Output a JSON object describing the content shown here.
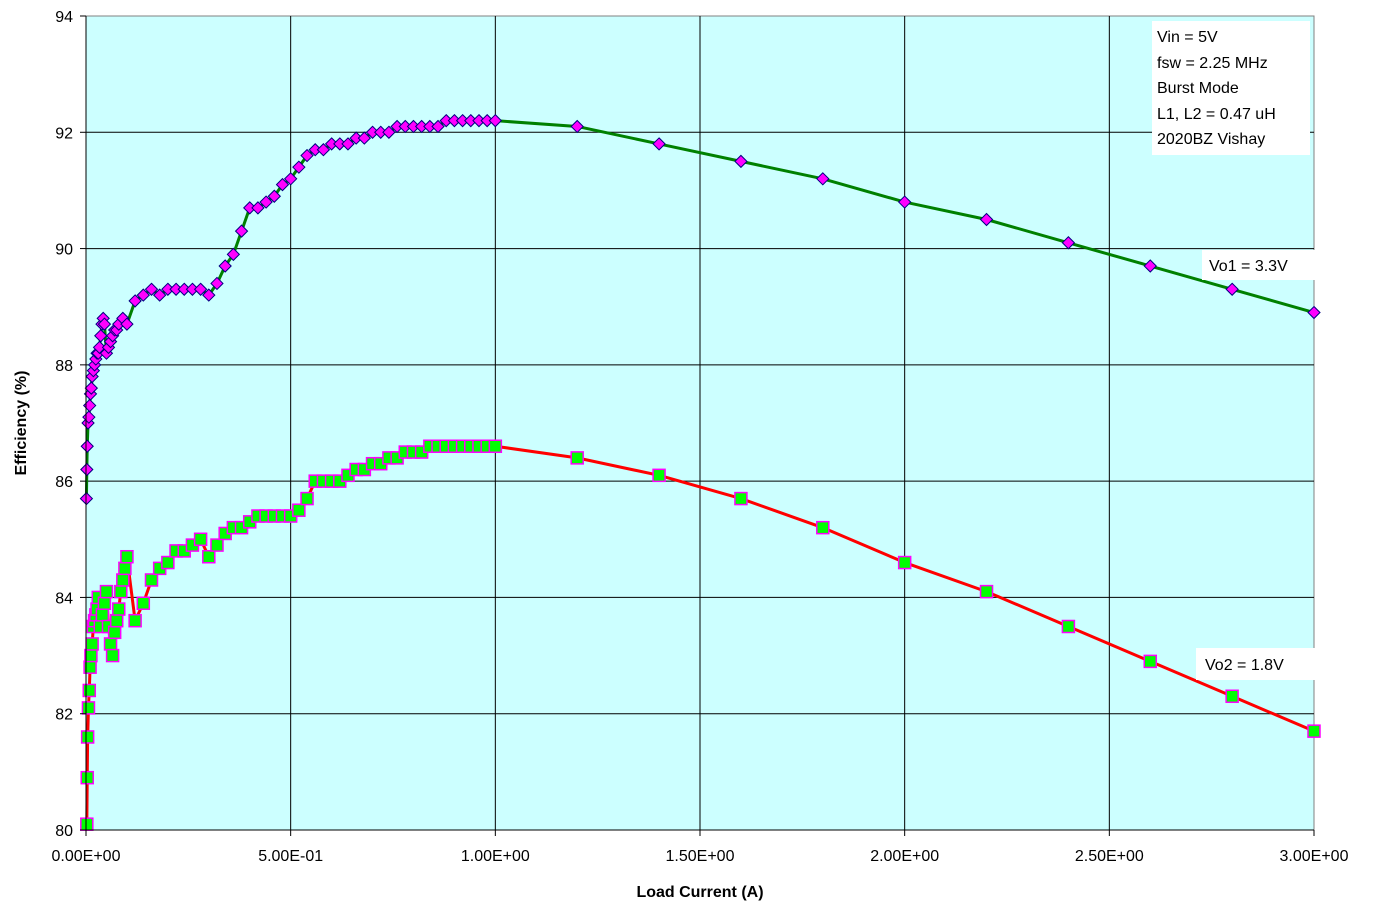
{
  "chart_data": {
    "type": "line",
    "xlabel": "Load Current (A)",
    "ylabel": "Efficiency (%)",
    "xlim": [
      0,
      3
    ],
    "ylim": [
      80,
      94
    ],
    "x_ticks": [
      {
        "value": 0,
        "label": "0.00E+00"
      },
      {
        "value": 0.5,
        "label": "5.00E-01"
      },
      {
        "value": 1.0,
        "label": "1.00E+00"
      },
      {
        "value": 1.5,
        "label": "1.50E+00"
      },
      {
        "value": 2.0,
        "label": "2.00E+00"
      },
      {
        "value": 2.5,
        "label": "2.50E+00"
      },
      {
        "value": 3.0,
        "label": "3.00E+00"
      }
    ],
    "y_ticks": [
      {
        "value": 80,
        "label": "80"
      },
      {
        "value": 82,
        "label": "82"
      },
      {
        "value": 84,
        "label": "84"
      },
      {
        "value": 86,
        "label": "86"
      },
      {
        "value": 88,
        "label": "88"
      },
      {
        "value": 90,
        "label": "90"
      },
      {
        "value": 92,
        "label": "92"
      },
      {
        "value": 94,
        "label": "94"
      }
    ],
    "grid": true,
    "plot_background": "#ccffff",
    "info_box": [
      "Vin = 5V",
      "fsw = 2.25 MHz",
      "Burst Mode",
      "L1, L2 = 0.47 uH",
      "2020BZ Vishay"
    ],
    "series": [
      {
        "name": "Vo1 = 3.3V",
        "line_color": "#008000",
        "marker": "diamond",
        "marker_fill": "#ff00ff",
        "marker_edge": "#000080",
        "points": [
          [
            0.001,
            85.7
          ],
          [
            0.002,
            86.2
          ],
          [
            0.003,
            86.6
          ],
          [
            0.005,
            87.0
          ],
          [
            0.007,
            87.1
          ],
          [
            0.009,
            87.3
          ],
          [
            0.011,
            87.5
          ],
          [
            0.013,
            87.6
          ],
          [
            0.015,
            87.8
          ],
          [
            0.018,
            87.9
          ],
          [
            0.021,
            88.0
          ],
          [
            0.024,
            88.1
          ],
          [
            0.027,
            88.2
          ],
          [
            0.03,
            88.2
          ],
          [
            0.033,
            88.3
          ],
          [
            0.036,
            88.5
          ],
          [
            0.039,
            88.7
          ],
          [
            0.042,
            88.8
          ],
          [
            0.045,
            88.7
          ],
          [
            0.05,
            88.2
          ],
          [
            0.055,
            88.3
          ],
          [
            0.06,
            88.4
          ],
          [
            0.065,
            88.5
          ],
          [
            0.07,
            88.6
          ],
          [
            0.075,
            88.6
          ],
          [
            0.08,
            88.7
          ],
          [
            0.09,
            88.8
          ],
          [
            0.1,
            88.7
          ],
          [
            0.12,
            89.1
          ],
          [
            0.14,
            89.2
          ],
          [
            0.16,
            89.3
          ],
          [
            0.18,
            89.2
          ],
          [
            0.2,
            89.3
          ],
          [
            0.22,
            89.3
          ],
          [
            0.24,
            89.3
          ],
          [
            0.26,
            89.3
          ],
          [
            0.28,
            89.3
          ],
          [
            0.3,
            89.2
          ],
          [
            0.32,
            89.4
          ],
          [
            0.34,
            89.7
          ],
          [
            0.36,
            89.9
          ],
          [
            0.38,
            90.3
          ],
          [
            0.4,
            90.7
          ],
          [
            0.42,
            90.7
          ],
          [
            0.44,
            90.8
          ],
          [
            0.46,
            90.9
          ],
          [
            0.48,
            91.1
          ],
          [
            0.5,
            91.2
          ],
          [
            0.52,
            91.4
          ],
          [
            0.54,
            91.6
          ],
          [
            0.56,
            91.7
          ],
          [
            0.58,
            91.7
          ],
          [
            0.6,
            91.8
          ],
          [
            0.62,
            91.8
          ],
          [
            0.64,
            91.8
          ],
          [
            0.66,
            91.9
          ],
          [
            0.68,
            91.9
          ],
          [
            0.7,
            92.0
          ],
          [
            0.72,
            92.0
          ],
          [
            0.74,
            92.0
          ],
          [
            0.76,
            92.1
          ],
          [
            0.78,
            92.1
          ],
          [
            0.8,
            92.1
          ],
          [
            0.82,
            92.1
          ],
          [
            0.84,
            92.1
          ],
          [
            0.86,
            92.1
          ],
          [
            0.88,
            92.2
          ],
          [
            0.9,
            92.2
          ],
          [
            0.92,
            92.2
          ],
          [
            0.94,
            92.2
          ],
          [
            0.96,
            92.2
          ],
          [
            0.98,
            92.2
          ],
          [
            1.0,
            92.2
          ],
          [
            1.2,
            92.1
          ],
          [
            1.4,
            91.8
          ],
          [
            1.6,
            91.5
          ],
          [
            1.8,
            91.2
          ],
          [
            2.0,
            90.8
          ],
          [
            2.2,
            90.5
          ],
          [
            2.4,
            90.1
          ],
          [
            2.6,
            89.7
          ],
          [
            2.8,
            89.3
          ],
          [
            3.0,
            88.9
          ]
        ]
      },
      {
        "name": "Vo2 = 1.8V",
        "line_color": "#ff0000",
        "marker": "square",
        "marker_fill": "#00ff00",
        "marker_edge": "#ff00ff",
        "points": [
          [
            0.002,
            80.1
          ],
          [
            0.003,
            80.9
          ],
          [
            0.004,
            81.6
          ],
          [
            0.006,
            82.1
          ],
          [
            0.008,
            82.4
          ],
          [
            0.01,
            82.8
          ],
          [
            0.012,
            83.0
          ],
          [
            0.015,
            83.2
          ],
          [
            0.018,
            83.5
          ],
          [
            0.021,
            83.6
          ],
          [
            0.024,
            83.7
          ],
          [
            0.027,
            83.8
          ],
          [
            0.03,
            84.0
          ],
          [
            0.035,
            83.5
          ],
          [
            0.04,
            83.7
          ],
          [
            0.045,
            83.9
          ],
          [
            0.05,
            84.1
          ],
          [
            0.055,
            83.5
          ],
          [
            0.06,
            83.2
          ],
          [
            0.065,
            83.0
          ],
          [
            0.07,
            83.4
          ],
          [
            0.075,
            83.6
          ],
          [
            0.08,
            83.8
          ],
          [
            0.085,
            84.1
          ],
          [
            0.09,
            84.3
          ],
          [
            0.095,
            84.5
          ],
          [
            0.1,
            84.7
          ],
          [
            0.12,
            83.6
          ],
          [
            0.14,
            83.9
          ],
          [
            0.16,
            84.3
          ],
          [
            0.18,
            84.5
          ],
          [
            0.2,
            84.6
          ],
          [
            0.22,
            84.8
          ],
          [
            0.24,
            84.8
          ],
          [
            0.26,
            84.9
          ],
          [
            0.28,
            85.0
          ],
          [
            0.3,
            84.7
          ],
          [
            0.32,
            84.9
          ],
          [
            0.34,
            85.1
          ],
          [
            0.36,
            85.2
          ],
          [
            0.38,
            85.2
          ],
          [
            0.4,
            85.3
          ],
          [
            0.42,
            85.4
          ],
          [
            0.44,
            85.4
          ],
          [
            0.46,
            85.4
          ],
          [
            0.48,
            85.4
          ],
          [
            0.5,
            85.4
          ],
          [
            0.52,
            85.5
          ],
          [
            0.54,
            85.7
          ],
          [
            0.56,
            86.0
          ],
          [
            0.58,
            86.0
          ],
          [
            0.6,
            86.0
          ],
          [
            0.62,
            86.0
          ],
          [
            0.64,
            86.1
          ],
          [
            0.66,
            86.2
          ],
          [
            0.68,
            86.2
          ],
          [
            0.7,
            86.3
          ],
          [
            0.72,
            86.3
          ],
          [
            0.74,
            86.4
          ],
          [
            0.76,
            86.4
          ],
          [
            0.78,
            86.5
          ],
          [
            0.8,
            86.5
          ],
          [
            0.82,
            86.5
          ],
          [
            0.84,
            86.6
          ],
          [
            0.86,
            86.6
          ],
          [
            0.88,
            86.6
          ],
          [
            0.9,
            86.6
          ],
          [
            0.92,
            86.6
          ],
          [
            0.94,
            86.6
          ],
          [
            0.96,
            86.6
          ],
          [
            0.98,
            86.6
          ],
          [
            1.0,
            86.6
          ],
          [
            1.2,
            86.4
          ],
          [
            1.4,
            86.1
          ],
          [
            1.6,
            85.7
          ],
          [
            1.8,
            85.2
          ],
          [
            2.0,
            84.6
          ],
          [
            2.2,
            84.1
          ],
          [
            2.4,
            83.5
          ],
          [
            2.6,
            82.9
          ],
          [
            2.8,
            82.3
          ],
          [
            3.0,
            81.7
          ]
        ]
      }
    ]
  }
}
